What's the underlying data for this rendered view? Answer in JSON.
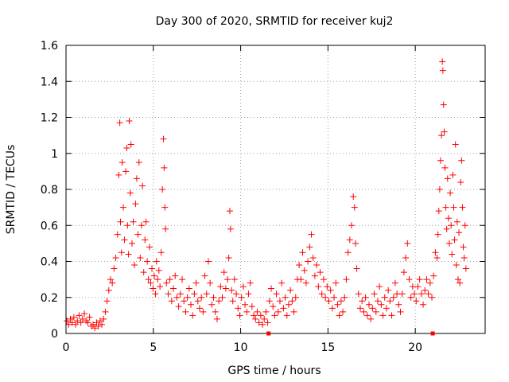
{
  "chart_data": {
    "type": "scatter",
    "title": "Day 300 of 2020, SRMTID for receiver kuj2",
    "xlabel": "GPS time / hours",
    "ylabel": "SRMTID / TECUs",
    "xlim": [
      0,
      24
    ],
    "ylim": [
      0,
      1.6
    ],
    "xticks": [
      0,
      5,
      10,
      15,
      20
    ],
    "xtick_labels": [
      "0",
      "5",
      "10",
      "15",
      "20"
    ],
    "yticks": [
      0,
      0.2,
      0.4,
      0.6,
      0.8,
      1.0,
      1.2,
      1.4,
      1.6
    ],
    "ytick_labels": [
      "0",
      "0.2",
      "0.4",
      "0.6",
      "0.8",
      "1",
      "1.2",
      "1.4",
      "1.6"
    ],
    "grid": true,
    "marker": "+",
    "color": "#ff0000",
    "gap_markers_x": [
      11.6,
      21.0
    ],
    "series": [
      {
        "name": "SRMTID",
        "points": [
          [
            0.05,
            0.07
          ],
          [
            0.15,
            0.05
          ],
          [
            0.25,
            0.08
          ],
          [
            0.35,
            0.06
          ],
          [
            0.45,
            0.09
          ],
          [
            0.55,
            0.05
          ],
          [
            0.65,
            0.07
          ],
          [
            0.75,
            0.1
          ],
          [
            0.85,
            0.06
          ],
          [
            0.95,
            0.08
          ],
          [
            1.05,
            0.11
          ],
          [
            1.15,
            0.07
          ],
          [
            1.25,
            0.06
          ],
          [
            1.35,
            0.09
          ],
          [
            1.45,
            0.04
          ],
          [
            1.55,
            0.05
          ],
          [
            1.65,
            0.03
          ],
          [
            1.75,
            0.06
          ],
          [
            1.85,
            0.04
          ],
          [
            1.95,
            0.07
          ],
          [
            2.05,
            0.05
          ],
          [
            2.15,
            0.08
          ],
          [
            2.25,
            0.12
          ],
          [
            2.35,
            0.18
          ],
          [
            2.45,
            0.24
          ],
          [
            2.55,
            0.3
          ],
          [
            2.65,
            0.28
          ],
          [
            2.75,
            0.36
          ],
          [
            2.85,
            0.42
          ],
          [
            2.95,
            0.55
          ],
          [
            3.02,
            0.88
          ],
          [
            3.08,
            1.17
          ],
          [
            3.12,
            0.62
          ],
          [
            3.18,
            0.45
          ],
          [
            3.22,
            0.95
          ],
          [
            3.28,
            0.7
          ],
          [
            3.35,
            0.52
          ],
          [
            3.42,
            0.9
          ],
          [
            3.48,
            1.03
          ],
          [
            3.52,
            0.6
          ],
          [
            3.58,
            0.44
          ],
          [
            3.62,
            1.18
          ],
          [
            3.68,
            0.78
          ],
          [
            3.72,
            1.05
          ],
          [
            3.78,
            0.5
          ],
          [
            3.85,
            0.62
          ],
          [
            3.92,
            0.38
          ],
          [
            3.98,
            0.72
          ],
          [
            4.05,
            0.86
          ],
          [
            4.12,
            0.55
          ],
          [
            4.18,
            0.95
          ],
          [
            4.25,
            0.42
          ],
          [
            4.32,
            0.6
          ],
          [
            4.38,
            0.82
          ],
          [
            4.45,
            0.34
          ],
          [
            4.52,
            0.52
          ],
          [
            4.58,
            0.62
          ],
          [
            4.65,
            0.4
          ],
          [
            4.72,
            0.3
          ],
          [
            4.78,
            0.48
          ],
          [
            4.85,
            0.28
          ],
          [
            4.92,
            0.36
          ],
          [
            4.98,
            0.25
          ],
          [
            5.05,
            0.32
          ],
          [
            5.12,
            0.22
          ],
          [
            5.18,
            0.4
          ],
          [
            5.25,
            0.3
          ],
          [
            5.32,
            0.35
          ],
          [
            5.38,
            0.26
          ],
          [
            5.45,
            0.45
          ],
          [
            5.52,
            0.8
          ],
          [
            5.58,
            1.08
          ],
          [
            5.62,
            0.92
          ],
          [
            5.66,
            0.7
          ],
          [
            5.7,
            0.58
          ],
          [
            5.75,
            0.28
          ],
          [
            5.85,
            0.22
          ],
          [
            5.95,
            0.3
          ],
          [
            6.05,
            0.18
          ],
          [
            6.15,
            0.25
          ],
          [
            6.25,
            0.32
          ],
          [
            6.35,
            0.2
          ],
          [
            6.45,
            0.15
          ],
          [
            6.55,
            0.22
          ],
          [
            6.65,
            0.3
          ],
          [
            6.75,
            0.18
          ],
          [
            6.85,
            0.12
          ],
          [
            6.95,
            0.2
          ],
          [
            7.05,
            0.25
          ],
          [
            7.15,
            0.16
          ],
          [
            7.25,
            0.1
          ],
          [
            7.35,
            0.22
          ],
          [
            7.45,
            0.28
          ],
          [
            7.55,
            0.18
          ],
          [
            7.65,
            0.14
          ],
          [
            7.75,
            0.2
          ],
          [
            7.85,
            0.12
          ],
          [
            7.95,
            0.32
          ],
          [
            8.05,
            0.22
          ],
          [
            8.15,
            0.4
          ],
          [
            8.25,
            0.28
          ],
          [
            8.35,
            0.16
          ],
          [
            8.45,
            0.2
          ],
          [
            8.55,
            0.12
          ],
          [
            8.65,
            0.08
          ],
          [
            8.75,
            0.18
          ],
          [
            8.85,
            0.26
          ],
          [
            8.95,
            0.2
          ],
          [
            9.05,
            0.34
          ],
          [
            9.15,
            0.25
          ],
          [
            9.25,
            0.3
          ],
          [
            9.32,
            0.42
          ],
          [
            9.38,
            0.68
          ],
          [
            9.42,
            0.58
          ],
          [
            9.48,
            0.24
          ],
          [
            9.55,
            0.18
          ],
          [
            9.65,
            0.3
          ],
          [
            9.75,
            0.22
          ],
          [
            9.85,
            0.14
          ],
          [
            9.95,
            0.1
          ],
          [
            10.05,
            0.2
          ],
          [
            10.15,
            0.26
          ],
          [
            10.25,
            0.16
          ],
          [
            10.35,
            0.12
          ],
          [
            10.45,
            0.22
          ],
          [
            10.55,
            0.28
          ],
          [
            10.65,
            0.15
          ],
          [
            10.75,
            0.1
          ],
          [
            10.85,
            0.08
          ],
          [
            10.95,
            0.12
          ],
          [
            11.05,
            0.06
          ],
          [
            11.15,
            0.1
          ],
          [
            11.25,
            0.05
          ],
          [
            11.35,
            0.08
          ],
          [
            11.45,
            0.12
          ],
          [
            11.55,
            0.06
          ],
          [
            11.65,
            0.18
          ],
          [
            11.75,
            0.25
          ],
          [
            11.85,
            0.15
          ],
          [
            11.95,
            0.1
          ],
          [
            12.05,
            0.22
          ],
          [
            12.15,
            0.12
          ],
          [
            12.25,
            0.18
          ],
          [
            12.35,
            0.28
          ],
          [
            12.45,
            0.14
          ],
          [
            12.55,
            0.2
          ],
          [
            12.65,
            0.1
          ],
          [
            12.75,
            0.16
          ],
          [
            12.85,
            0.24
          ],
          [
            12.95,
            0.18
          ],
          [
            13.05,
            0.12
          ],
          [
            13.15,
            0.2
          ],
          [
            13.25,
            0.3
          ],
          [
            13.35,
            0.38
          ],
          [
            13.45,
            0.3
          ],
          [
            13.55,
            0.45
          ],
          [
            13.65,
            0.35
          ],
          [
            13.75,
            0.28
          ],
          [
            13.85,
            0.4
          ],
          [
            13.95,
            0.48
          ],
          [
            14.05,
            0.55
          ],
          [
            14.15,
            0.42
          ],
          [
            14.25,
            0.32
          ],
          [
            14.35,
            0.38
          ],
          [
            14.45,
            0.26
          ],
          [
            14.55,
            0.34
          ],
          [
            14.65,
            0.22
          ],
          [
            14.75,
            0.3
          ],
          [
            14.85,
            0.2
          ],
          [
            14.95,
            0.26
          ],
          [
            15.05,
            0.18
          ],
          [
            15.15,
            0.24
          ],
          [
            15.25,
            0.14
          ],
          [
            15.35,
            0.2
          ],
          [
            15.45,
            0.28
          ],
          [
            15.55,
            0.16
          ],
          [
            15.65,
            0.1
          ],
          [
            15.75,
            0.18
          ],
          [
            15.85,
            0.12
          ],
          [
            15.95,
            0.2
          ],
          [
            16.05,
            0.3
          ],
          [
            16.15,
            0.45
          ],
          [
            16.25,
            0.52
          ],
          [
            16.35,
            0.6
          ],
          [
            16.45,
            0.76
          ],
          [
            16.52,
            0.7
          ],
          [
            16.58,
            0.5
          ],
          [
            16.65,
            0.36
          ],
          [
            16.75,
            0.22
          ],
          [
            16.85,
            0.14
          ],
          [
            16.95,
            0.18
          ],
          [
            17.05,
            0.12
          ],
          [
            17.15,
            0.2
          ],
          [
            17.25,
            0.1
          ],
          [
            17.35,
            0.16
          ],
          [
            17.45,
            0.08
          ],
          [
            17.55,
            0.14
          ],
          [
            17.65,
            0.22
          ],
          [
            17.75,
            0.12
          ],
          [
            17.85,
            0.18
          ],
          [
            17.95,
            0.26
          ],
          [
            18.05,
            0.16
          ],
          [
            18.15,
            0.1
          ],
          [
            18.25,
            0.2
          ],
          [
            18.35,
            0.14
          ],
          [
            18.45,
            0.24
          ],
          [
            18.55,
            0.18
          ],
          [
            18.65,
            0.1
          ],
          [
            18.75,
            0.2
          ],
          [
            18.85,
            0.28
          ],
          [
            18.95,
            0.22
          ],
          [
            19.05,
            0.16
          ],
          [
            19.15,
            0.12
          ],
          [
            19.25,
            0.22
          ],
          [
            19.35,
            0.34
          ],
          [
            19.45,
            0.42
          ],
          [
            19.55,
            0.5
          ],
          [
            19.65,
            0.3
          ],
          [
            19.75,
            0.2
          ],
          [
            19.85,
            0.26
          ],
          [
            19.95,
            0.22
          ],
          [
            20.05,
            0.18
          ],
          [
            20.15,
            0.26
          ],
          [
            20.25,
            0.3
          ],
          [
            20.35,
            0.22
          ],
          [
            20.45,
            0.16
          ],
          [
            20.55,
            0.24
          ],
          [
            20.65,
            0.3
          ],
          [
            20.75,
            0.22
          ],
          [
            20.85,
            0.28
          ],
          [
            20.95,
            0.2
          ],
          [
            21.05,
            0.32
          ],
          [
            21.15,
            0.45
          ],
          [
            21.25,
            0.42
          ],
          [
            21.3,
            0.55
          ],
          [
            21.35,
            0.68
          ],
          [
            21.4,
            0.8
          ],
          [
            21.45,
            0.96
          ],
          [
            21.5,
            1.1
          ],
          [
            21.55,
            1.51
          ],
          [
            21.58,
            1.46
          ],
          [
            21.62,
            1.27
          ],
          [
            21.66,
            1.12
          ],
          [
            21.7,
            0.92
          ],
          [
            21.75,
            0.7
          ],
          [
            21.8,
            0.58
          ],
          [
            21.85,
            0.86
          ],
          [
            21.9,
            0.64
          ],
          [
            21.95,
            0.5
          ],
          [
            22.0,
            0.78
          ],
          [
            22.05,
            0.6
          ],
          [
            22.1,
            0.44
          ],
          [
            22.15,
            0.88
          ],
          [
            22.2,
            0.7
          ],
          [
            22.25,
            0.52
          ],
          [
            22.3,
            1.05
          ],
          [
            22.35,
            0.38
          ],
          [
            22.4,
            0.62
          ],
          [
            22.45,
            0.3
          ],
          [
            22.5,
            0.56
          ],
          [
            22.55,
            0.28
          ],
          [
            22.6,
            0.84
          ],
          [
            22.65,
            0.96
          ],
          [
            22.7,
            0.7
          ],
          [
            22.75,
            0.48
          ],
          [
            22.8,
            0.42
          ],
          [
            22.85,
            0.6
          ],
          [
            22.9,
            0.36
          ]
        ]
      }
    ]
  }
}
